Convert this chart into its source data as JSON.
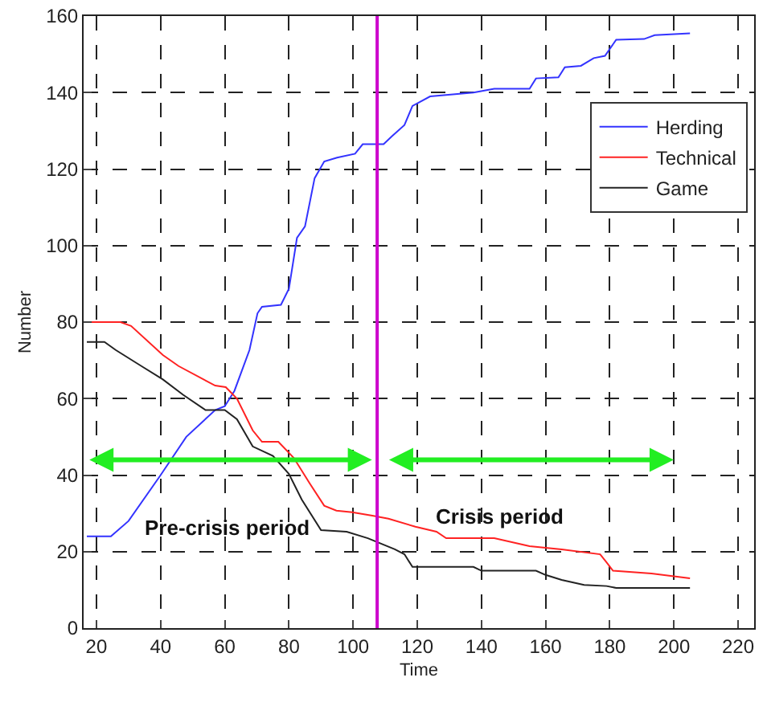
{
  "chart_data": {
    "type": "line",
    "xlabel": "Time",
    "ylabel": "Number",
    "xlim": [
      16,
      225
    ],
    "xticks": [
      20,
      40,
      60,
      80,
      100,
      120,
      140,
      160,
      180,
      200,
      220
    ],
    "ylim": [
      0,
      160
    ],
    "yticks": [
      0,
      20,
      40,
      60,
      80,
      100,
      120,
      140,
      160
    ],
    "grid": true,
    "legend": "top right",
    "line_style": "solid",
    "marker": "none",
    "series": [
      {
        "name": "Herding",
        "color": "#3333ff",
        "x": [
          17,
          24.5,
          30,
          40,
          48,
          57,
          60,
          63,
          67.7,
          70.2,
          71.6,
          77.5,
          80,
          82.5,
          85,
          88,
          91,
          95,
          100.6,
          103,
          108,
          109.5,
          112,
          116,
          118.5,
          124,
          137.5,
          144,
          155,
          157,
          164,
          166,
          171,
          175,
          178.5,
          182,
          190.7,
          194,
          205
        ],
        "values": [
          24,
          24,
          28,
          40,
          50,
          57,
          58,
          62,
          72.7,
          82.3,
          84,
          84.5,
          88.7,
          102,
          105,
          117.6,
          122,
          123,
          124,
          126.5,
          126.5,
          126.5,
          128.5,
          131.5,
          136.5,
          139,
          140,
          141,
          141,
          143.7,
          144,
          146.6,
          147,
          149,
          149.6,
          153.8,
          154,
          155,
          155.5
        ]
      },
      {
        "name": "Technical",
        "color": "#ff2222",
        "x": [
          17,
          27.5,
          30.8,
          40.7,
          45.6,
          57,
          60.3,
          63.8,
          68.7,
          71.6,
          76.7,
          81.5,
          86.5,
          91,
          94.8,
          99.7,
          106,
          111,
          119.4,
          126,
          129,
          144,
          155,
          165,
          177,
          179,
          181,
          193,
          205
        ],
        "values": [
          80,
          80,
          79,
          71.4,
          68.5,
          63.4,
          63,
          60,
          51.7,
          48.7,
          48.7,
          44.5,
          37.8,
          32,
          30.7,
          30.3,
          29.4,
          28.6,
          26.5,
          25.2,
          23.5,
          23.5,
          21.4,
          20.6,
          19.3,
          17.2,
          15,
          14.3,
          13
        ]
      },
      {
        "name": "Game",
        "color": "#222222",
        "x": [
          17,
          22.5,
          26,
          34,
          40.7,
          47,
          54,
          60,
          63.8,
          68.7,
          75,
          80,
          84,
          90,
          98,
          104.6,
          113,
          116,
          118.5,
          137.5,
          140,
          157,
          160,
          165,
          172,
          179,
          182,
          205
        ],
        "values": [
          74.8,
          74.8,
          72.7,
          68.5,
          65,
          61,
          57,
          57,
          54.6,
          47.5,
          45,
          40.3,
          33.6,
          25.6,
          25.2,
          23.5,
          20.6,
          19.3,
          16,
          16,
          15,
          15,
          13.9,
          12.6,
          11.3,
          11,
          10.5,
          10.5
        ]
      }
    ],
    "ref_lines": [
      {
        "axis": "x",
        "value": 107.5,
        "color": "#cc00cc",
        "line_style": "solid"
      }
    ],
    "annotations": [
      "Pre-crisis period",
      "Crisis period"
    ]
  }
}
